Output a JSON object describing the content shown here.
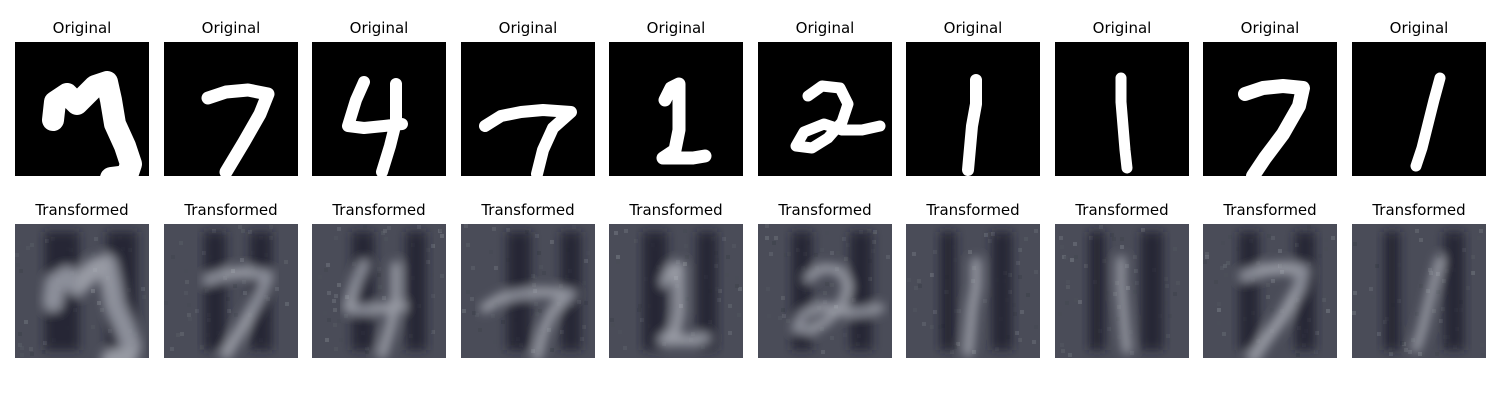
{
  "rows": [
    {
      "label": "Original",
      "tiles": [
        {
          "digit": "4"
        },
        {
          "digit": "7"
        },
        {
          "digit": "4"
        },
        {
          "digit": "7"
        },
        {
          "digit": "1"
        },
        {
          "digit": "2"
        },
        {
          "digit": "1"
        },
        {
          "digit": "1"
        },
        {
          "digit": "7"
        },
        {
          "digit": "1"
        }
      ]
    },
    {
      "label": "Transformed",
      "tiles": [
        {
          "digit": "4"
        },
        {
          "digit": "7"
        },
        {
          "digit": "4"
        },
        {
          "digit": "7"
        },
        {
          "digit": "1"
        },
        {
          "digit": "2"
        },
        {
          "digit": "1"
        },
        {
          "digit": "1"
        },
        {
          "digit": "7"
        },
        {
          "digit": "1"
        }
      ]
    }
  ],
  "colors": {
    "original_background": "#000000",
    "original_stroke": "#ffffff",
    "transformed_background": "#4a4c58",
    "transformed_dark": "#1c2030",
    "transformed_light": "#b9bcc4"
  }
}
